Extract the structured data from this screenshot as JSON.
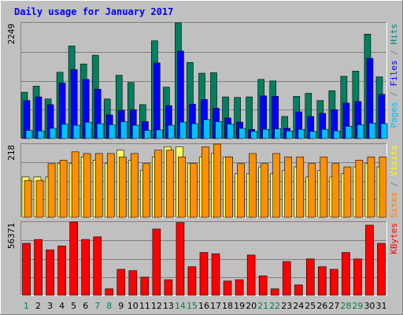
{
  "chart_data": {
    "type": "bar",
    "title": "Daily usage for January 2017",
    "categories": [
      "1",
      "2",
      "3",
      "4",
      "5",
      "6",
      "7",
      "8",
      "9",
      "10",
      "11",
      "12",
      "13",
      "14",
      "15",
      "16",
      "17",
      "18",
      "19",
      "20",
      "21",
      "22",
      "23",
      "24",
      "25",
      "26",
      "27",
      "28",
      "29",
      "30",
      "31"
    ],
    "weekend_days": [
      "1",
      "7",
      "8",
      "14",
      "15",
      "21",
      "22",
      "28",
      "29"
    ],
    "panels": [
      {
        "name": "hits-files-pages",
        "ylim": [
          0,
          2249
        ],
        "y_tick_label": "2249",
        "grid": true,
        "legend": [
          {
            "text": "Pages",
            "color": "#00c0ff"
          },
          {
            "text": " / ",
            "color": "#808080"
          },
          {
            "text": "Files",
            "color": "#0000ff"
          },
          {
            "text": " / ",
            "color": "#808080"
          },
          {
            "text": "Hits",
            "color": "#008080"
          }
        ],
        "series": [
          {
            "key": "hits",
            "color": "#008060",
            "values": [
              900,
              1020,
              770,
              1290,
              1800,
              1450,
              1620,
              770,
              1230,
              1090,
              660,
              1900,
              1000,
              2249,
              1480,
              1270,
              1280,
              810,
              800,
              810,
              1150,
              1120,
              430,
              820,
              880,
              740,
              930,
              1210,
              1310,
              2030,
              1200
            ]
          },
          {
            "key": "files",
            "color": "#0000ff",
            "values": [
              740,
              810,
              660,
              1080,
              1340,
              1150,
              960,
              460,
              550,
              560,
              330,
              1470,
              640,
              1700,
              670,
              760,
              590,
              400,
              320,
              180,
              830,
              820,
              200,
              520,
              430,
              490,
              560,
              690,
              720,
              1560,
              860
            ]
          },
          {
            "key": "pages",
            "color": "#00c0ff",
            "values": [
              160,
              150,
              200,
              280,
              260,
              320,
              290,
              270,
              330,
              260,
              160,
              170,
              260,
              320,
              290,
              370,
              330,
              280,
              200,
              140,
              180,
              190,
              150,
              180,
              140,
              180,
              150,
              240,
              270,
              300,
              290
            ]
          }
        ]
      },
      {
        "name": "visits-sites",
        "ylim": [
          0,
          218
        ],
        "y_tick_label": "218",
        "grid": true,
        "legend": [
          {
            "text": "Sites",
            "color": "#ff8000"
          },
          {
            "text": " / ",
            "color": "#808080"
          },
          {
            "text": "Visits",
            "color": "#ffff00"
          }
        ],
        "series": [
          {
            "key": "visits",
            "color": "#ffff60",
            "values": [
              120,
              120,
              120,
              160,
              160,
              180,
              170,
              160,
              200,
              170,
              140,
              180,
              210,
              210,
              160,
              180,
              190,
              180,
              130,
              130,
              150,
              130,
              140,
              150,
              120,
              140,
              120,
              130,
              150,
              160,
              150
            ]
          },
          {
            "key": "sites",
            "color": "#ff9000",
            "values": [
              110,
              110,
              160,
              170,
              195,
              190,
              190,
              190,
              180,
              190,
              160,
              200,
              200,
              180,
              160,
              210,
              218,
              180,
              160,
              190,
              160,
              190,
              180,
              180,
              160,
              180,
              160,
              150,
              170,
              180,
              180
            ]
          }
        ]
      },
      {
        "name": "kbytes",
        "ylim": [
          0,
          56371
        ],
        "y_tick_label": "56371",
        "grid": true,
        "legend": [
          {
            "text": "KBytes",
            "color": "#ff0000"
          }
        ],
        "series": [
          {
            "key": "kbytes",
            "color": "#ff0000",
            "values": [
              40000,
              43000,
              35000,
              38000,
              56371,
              43000,
              45000,
              5000,
              20000,
              19000,
              14000,
              51000,
              12000,
              56000,
              22000,
              33000,
              32000,
              11000,
              12000,
              31000,
              15000,
              5000,
              26000,
              8000,
              28000,
              22000,
              20000,
              33000,
              28000,
              54000,
              40000
            ]
          }
        ]
      }
    ]
  }
}
